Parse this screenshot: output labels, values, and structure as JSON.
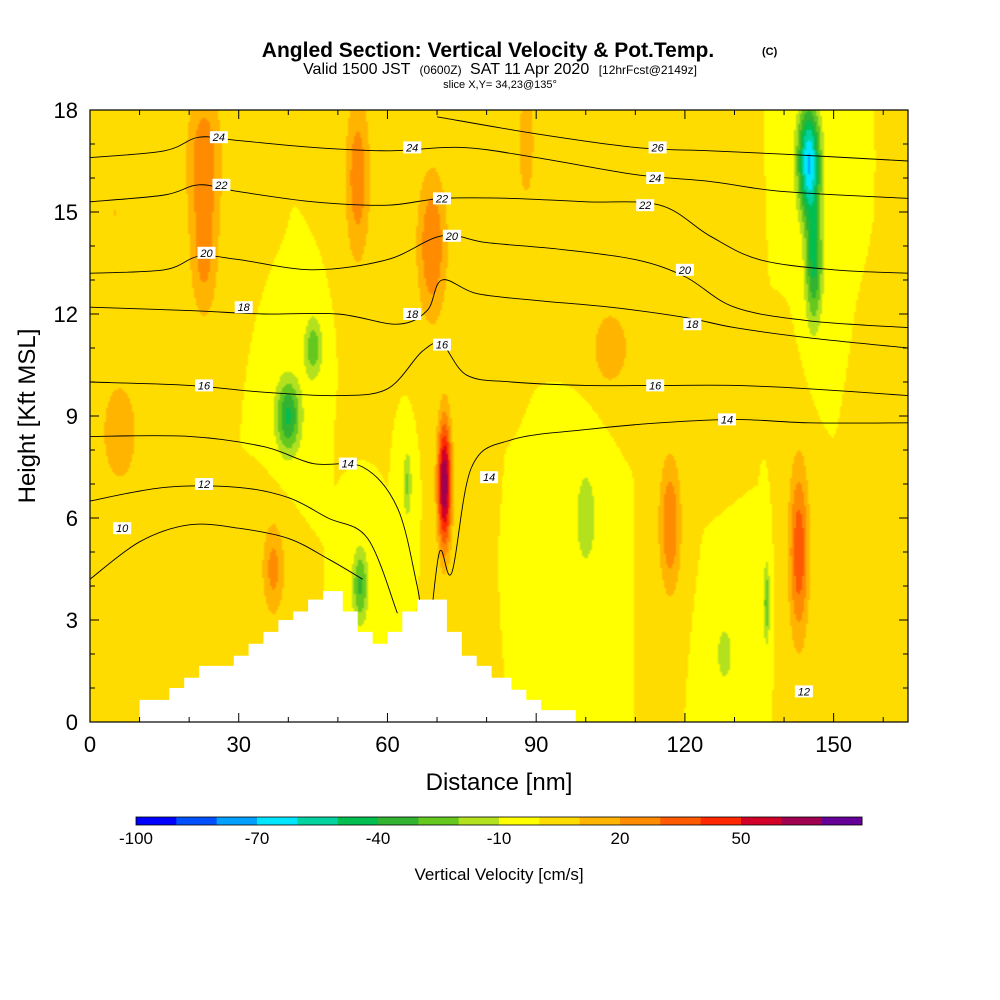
{
  "chart_data": {
    "type": "heatmap",
    "title": "Angled Section: Vertical Velocity & Pot.Temp.",
    "title_mark": "(C)",
    "subtitle_prefix": "Valid 1500 JST",
    "subtitle_utc": "(0600Z)",
    "subtitle_date": "SAT 11 Apr 2020",
    "subtitle_fcst": "[12hrFcst@2149z]",
    "slice_label": "slice X,Y= 34,23@135°",
    "xlabel": "Distance [nm]",
    "ylabel": "Height [Kft MSL]",
    "xlim": [
      0,
      165
    ],
    "ylim": [
      0,
      18
    ],
    "xticks": [
      0,
      30,
      60,
      90,
      120,
      150
    ],
    "yticks": [
      0,
      3,
      6,
      9,
      12,
      15,
      18
    ],
    "colorbar": {
      "title": "Vertical Velocity [cm/s]",
      "ticks": [
        -100,
        -70,
        -40,
        -10,
        20,
        50
      ],
      "bins": [
        -100,
        -90,
        -80,
        -70,
        -60,
        -50,
        -40,
        -30,
        -20,
        -10,
        0,
        10,
        20,
        30,
        40,
        50,
        60,
        70
      ],
      "colors": [
        "#0000ff",
        "#0050ff",
        "#00a0ff",
        "#00e6ff",
        "#00d2a0",
        "#00be50",
        "#32b432",
        "#64c81e",
        "#b4e11e",
        "#ffff00",
        "#ffdc00",
        "#ffb400",
        "#ff8c00",
        "#ff5a00",
        "#ff2800",
        "#d20028",
        "#a00050",
        "#640096"
      ]
    },
    "background_color": "#ffdc00",
    "w_features": [
      {
        "x": 23,
        "y": 16.5,
        "sx": 3.5,
        "sy": 2.2,
        "w": 28
      },
      {
        "x": 23,
        "y": 13.5,
        "sx": 2.8,
        "sy": 1.8,
        "w": 20
      },
      {
        "x": 54,
        "y": 16,
        "sx": 2.5,
        "sy": 2.5,
        "w": 27
      },
      {
        "x": 69,
        "y": 14,
        "sx": 3,
        "sy": 2.2,
        "w": 30
      },
      {
        "x": 71.5,
        "y": 7,
        "sx": 1.4,
        "sy": 1.9,
        "w": 70
      },
      {
        "x": 117,
        "y": 5.8,
        "sx": 2.2,
        "sy": 2,
        "w": 30
      },
      {
        "x": 143,
        "y": 5,
        "sx": 2,
        "sy": 2.6,
        "w": 38
      },
      {
        "x": 37,
        "y": 4.5,
        "sx": 2.3,
        "sy": 1.4,
        "w": 24
      },
      {
        "x": 88,
        "y": 17,
        "sx": 1.8,
        "sy": 1.8,
        "w": 18
      },
      {
        "x": 105,
        "y": 11,
        "sx": 4,
        "sy": 1.2,
        "w": 18
      },
      {
        "x": 6,
        "y": 8.5,
        "sx": 6,
        "sy": 2.5,
        "w": 13
      },
      {
        "x": 5,
        "y": 15,
        "sx": 4,
        "sy": 2.5,
        "w": 10
      },
      {
        "x": 125,
        "y": 14,
        "sx": 3,
        "sy": 3,
        "w": 10
      },
      {
        "x": 160,
        "y": 3,
        "sx": 4,
        "sy": 2,
        "w": 10
      },
      {
        "x": 40,
        "y": 9,
        "sx": 2.5,
        "sy": 1.1,
        "w": -42
      },
      {
        "x": 45,
        "y": 11,
        "sx": 1.8,
        "sy": 0.9,
        "w": -28
      },
      {
        "x": 54.5,
        "y": 4,
        "sx": 1.6,
        "sy": 1.1,
        "w": -32
      },
      {
        "x": 64,
        "y": 7,
        "sx": 0.9,
        "sy": 1,
        "w": -22
      },
      {
        "x": 145,
        "y": 16.5,
        "sx": 2.2,
        "sy": 1.6,
        "w": -70
      },
      {
        "x": 146,
        "y": 13.5,
        "sx": 1.7,
        "sy": 1.8,
        "w": -42
      },
      {
        "x": 136.5,
        "y": 3.5,
        "sx": 0.6,
        "sy": 1.2,
        "w": -28
      },
      {
        "x": 100,
        "y": 6,
        "sx": 3,
        "sy": 2,
        "w": -14
      },
      {
        "x": 128,
        "y": 2,
        "sx": 3,
        "sy": 1.5,
        "w": -12
      }
    ],
    "theta_contours": [
      {
        "level": 10,
        "points": [
          [
            0,
            4.2
          ],
          [
            10,
            5.3
          ],
          [
            20,
            5.8
          ],
          [
            30,
            5.7
          ],
          [
            40,
            5.4
          ],
          [
            48,
            4.8
          ],
          [
            55,
            4.2
          ]
        ]
      },
      {
        "level": 12,
        "points": [
          [
            0,
            6.5
          ],
          [
            15,
            6.9
          ],
          [
            30,
            6.9
          ],
          [
            40,
            6.6
          ],
          [
            48,
            6.0
          ],
          [
            56,
            5.4
          ],
          [
            62,
            3.2
          ]
        ]
      },
      {
        "level": 14,
        "points": [
          [
            0,
            8.4
          ],
          [
            20,
            8.4
          ],
          [
            35,
            8.1
          ],
          [
            45,
            7.6
          ],
          [
            55,
            7.5
          ],
          [
            62,
            6.3
          ],
          [
            66,
            4.0
          ],
          [
            68,
            2.4
          ],
          [
            70.5,
            5.0
          ],
          [
            73,
            4.4
          ],
          [
            77,
            7.5
          ],
          [
            85,
            8.3
          ],
          [
            100,
            8.6
          ],
          [
            115,
            8.8
          ],
          [
            130,
            8.9
          ],
          [
            145,
            8.8
          ],
          [
            165,
            8.8
          ]
        ]
      },
      {
        "level": 16,
        "points": [
          [
            0,
            10.0
          ],
          [
            20,
            9.9
          ],
          [
            35,
            9.7
          ],
          [
            50,
            9.6
          ],
          [
            60,
            9.8
          ],
          [
            67,
            10.9
          ],
          [
            71,
            11.1
          ],
          [
            76,
            10.2
          ],
          [
            85,
            10.0
          ],
          [
            100,
            9.9
          ],
          [
            115,
            9.9
          ],
          [
            130,
            9.9
          ],
          [
            145,
            9.8
          ],
          [
            165,
            9.6
          ]
        ]
      },
      {
        "level": 18,
        "points": [
          [
            0,
            12.2
          ],
          [
            20,
            12.1
          ],
          [
            35,
            12.0
          ],
          [
            50,
            12.0
          ],
          [
            62,
            11.7
          ],
          [
            68,
            12.1
          ],
          [
            71,
            13.0
          ],
          [
            78,
            12.6
          ],
          [
            90,
            12.4
          ],
          [
            105,
            12.2
          ],
          [
            120,
            11.9
          ],
          [
            130,
            11.6
          ],
          [
            145,
            11.3
          ],
          [
            165,
            11.0
          ]
        ]
      },
      {
        "level": 20,
        "points": [
          [
            0,
            13.2
          ],
          [
            15,
            13.3
          ],
          [
            22,
            13.7
          ],
          [
            30,
            13.6
          ],
          [
            45,
            13.3
          ],
          [
            60,
            13.6
          ],
          [
            71,
            14.3
          ],
          [
            80,
            14.1
          ],
          [
            95,
            13.9
          ],
          [
            110,
            13.6
          ],
          [
            120,
            13.1
          ],
          [
            130,
            12.2
          ],
          [
            145,
            11.8
          ],
          [
            165,
            11.6
          ]
        ]
      },
      {
        "level": 22,
        "points": [
          [
            0,
            15.3
          ],
          [
            15,
            15.5
          ],
          [
            22,
            15.8
          ],
          [
            30,
            15.6
          ],
          [
            45,
            15.3
          ],
          [
            60,
            15.2
          ],
          [
            71,
            15.4
          ],
          [
            85,
            15.4
          ],
          [
            100,
            15.3
          ],
          [
            115,
            15.2
          ],
          [
            125,
            14.3
          ],
          [
            135,
            13.6
          ],
          [
            150,
            13.3
          ],
          [
            165,
            13.2
          ]
        ]
      },
      {
        "level": 24,
        "points": [
          [
            0,
            16.6
          ],
          [
            15,
            16.8
          ],
          [
            22,
            17.2
          ],
          [
            30,
            17.1
          ],
          [
            45,
            16.9
          ],
          [
            60,
            16.8
          ],
          [
            75,
            16.9
          ],
          [
            90,
            16.6
          ],
          [
            110,
            16.1
          ],
          [
            125,
            15.9
          ],
          [
            140,
            15.6
          ],
          [
            165,
            15.4
          ]
        ]
      },
      {
        "level": 26,
        "points": [
          [
            70,
            17.8
          ],
          [
            90,
            17.3
          ],
          [
            110,
            16.9
          ],
          [
            125,
            16.8
          ],
          [
            140,
            16.7
          ],
          [
            165,
            16.5
          ]
        ]
      }
    ],
    "contour_labels": [
      {
        "text": "10",
        "x": 6.5,
        "y": 5.7
      },
      {
        "text": "12",
        "x": 23,
        "y": 7.0
      },
      {
        "text": "14",
        "x": 52,
        "y": 7.6
      },
      {
        "text": "14",
        "x": 80.5,
        "y": 7.2
      },
      {
        "text": "14",
        "x": 128.5,
        "y": 8.9
      },
      {
        "text": "16",
        "x": 23,
        "y": 9.9
      },
      {
        "text": "16",
        "x": 71,
        "y": 11.1
      },
      {
        "text": "16",
        "x": 114,
        "y": 9.9
      },
      {
        "text": "18",
        "x": 31,
        "y": 12.2
      },
      {
        "text": "18",
        "x": 65,
        "y": 12.0
      },
      {
        "text": "18",
        "x": 121.5,
        "y": 11.7
      },
      {
        "text": "20",
        "x": 23.5,
        "y": 13.8
      },
      {
        "text": "20",
        "x": 73,
        "y": 14.3
      },
      {
        "text": "20",
        "x": 120,
        "y": 13.3
      },
      {
        "text": "22",
        "x": 26.5,
        "y": 15.8
      },
      {
        "text": "22",
        "x": 71,
        "y": 15.4
      },
      {
        "text": "22",
        "x": 112,
        "y": 15.2
      },
      {
        "text": "24",
        "x": 26,
        "y": 17.2
      },
      {
        "text": "24",
        "x": 65,
        "y": 16.9
      },
      {
        "text": "24",
        "x": 114,
        "y": 16.0
      },
      {
        "text": "26",
        "x": 114.5,
        "y": 16.9
      },
      {
        "text": "12",
        "x": 144,
        "y": 0.9
      }
    ],
    "terrain": [
      [
        10,
        0.65
      ],
      [
        16,
        0.65
      ],
      [
        16,
        1.0
      ],
      [
        19,
        1.0
      ],
      [
        19,
        1.3
      ],
      [
        22,
        1.3
      ],
      [
        22,
        1.65
      ],
      [
        29,
        1.65
      ],
      [
        29,
        1.95
      ],
      [
        32,
        1.95
      ],
      [
        32,
        2.3
      ],
      [
        35,
        2.3
      ],
      [
        35,
        2.65
      ],
      [
        38,
        2.65
      ],
      [
        38,
        3.0
      ],
      [
        41,
        3.0
      ],
      [
        41,
        3.25
      ],
      [
        44,
        3.25
      ],
      [
        44,
        3.6
      ],
      [
        47,
        3.6
      ],
      [
        47,
        3.85
      ],
      [
        51,
        3.85
      ],
      [
        51,
        3.25
      ],
      [
        54,
        3.25
      ],
      [
        54,
        2.65
      ],
      [
        57,
        2.65
      ],
      [
        57,
        2.3
      ],
      [
        60,
        2.3
      ],
      [
        60,
        2.65
      ],
      [
        63,
        2.65
      ],
      [
        63,
        3.25
      ],
      [
        66,
        3.25
      ],
      [
        66,
        3.6
      ],
      [
        72,
        3.6
      ],
      [
        72,
        2.65
      ],
      [
        75,
        2.65
      ],
      [
        75,
        1.95
      ],
      [
        78,
        1.95
      ],
      [
        78,
        1.65
      ],
      [
        81,
        1.65
      ],
      [
        81,
        1.3
      ],
      [
        85,
        1.3
      ],
      [
        85,
        0.95
      ],
      [
        88,
        0.95
      ],
      [
        88,
        0.65
      ],
      [
        91,
        0.65
      ],
      [
        91,
        0.35
      ],
      [
        98,
        0.35
      ]
    ]
  }
}
